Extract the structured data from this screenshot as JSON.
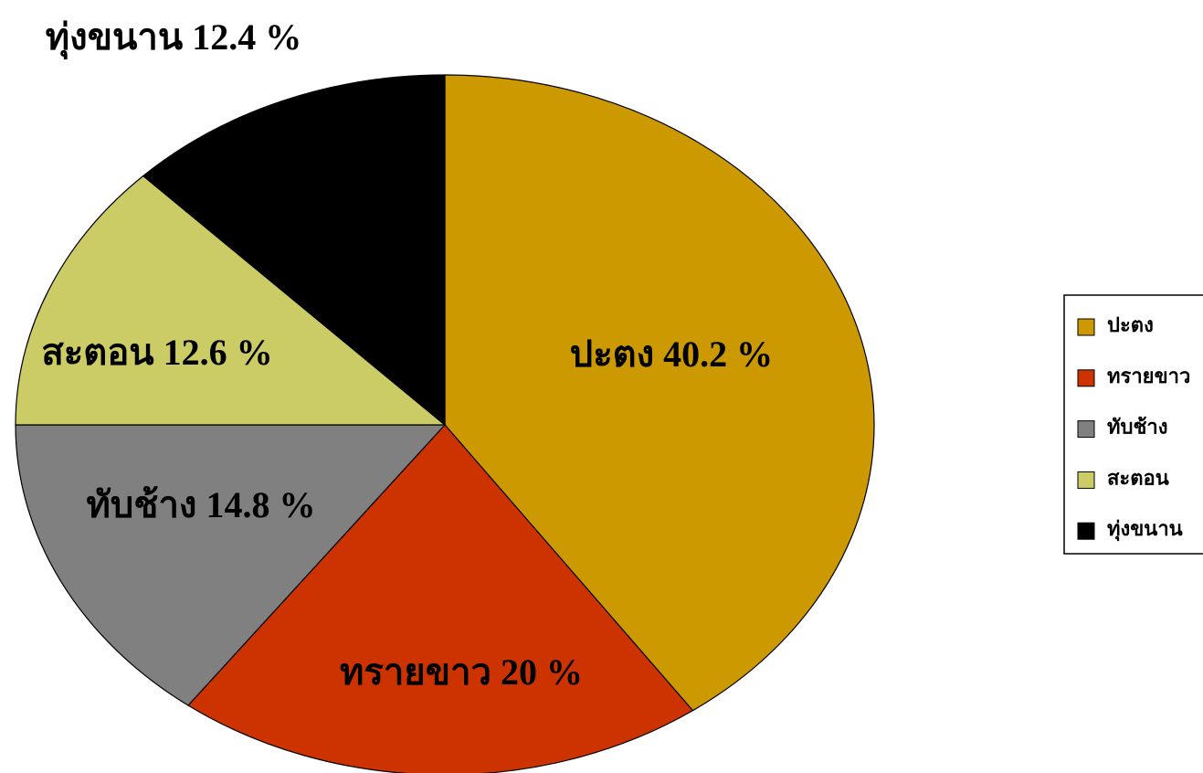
{
  "chart_data": {
    "type": "pie",
    "categories": [
      "ปะตง",
      "ทรายขาว",
      "ทับช้าง",
      "สะตอน",
      "ทุ่งขนาน"
    ],
    "values": [
      40.2,
      20,
      14.8,
      12.6,
      12.4
    ],
    "value_labels": [
      "ปะตง 40.2 %",
      "ทรายขาว 20 %",
      "ทับช้าง 14.8 %",
      "สะตอน 12.6 %",
      "ทุ่งขนาน 12.4 %"
    ],
    "colors": [
      "#cc9900",
      "#cc3300",
      "#808080",
      "#cccc66",
      "#000000"
    ],
    "legend": "right"
  }
}
